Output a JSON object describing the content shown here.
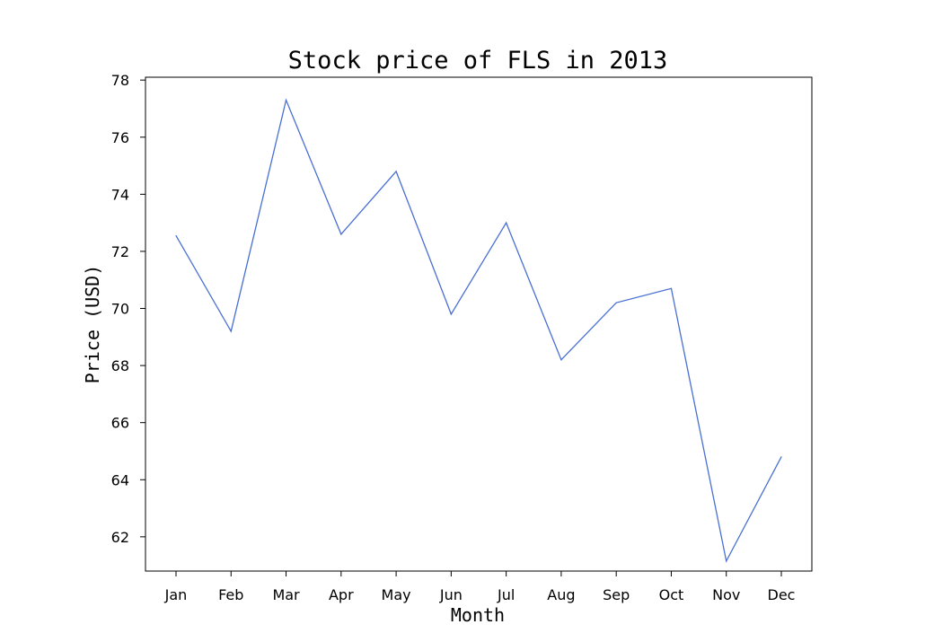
{
  "chart_data": {
    "type": "line",
    "title": "Stock price of FLS in 2013",
    "xlabel": "Month",
    "ylabel": "Price (USD)",
    "categories": [
      "Jan",
      "Feb",
      "Mar",
      "Apr",
      "May",
      "Jun",
      "Jul",
      "Aug",
      "Sep",
      "Oct",
      "Nov",
      "Dec"
    ],
    "series": [
      {
        "values": [
          72.55,
          69.2,
          77.3,
          72.6,
          74.8,
          69.8,
          73.0,
          68.2,
          70.2,
          70.7,
          61.15,
          64.8
        ],
        "color": "#4a6fd4"
      }
    ],
    "ylim": [
      60.8,
      78.1
    ],
    "yticks": [
      62,
      64,
      66,
      68,
      70,
      72,
      74,
      76,
      78
    ],
    "grid": false,
    "legend": "none"
  }
}
